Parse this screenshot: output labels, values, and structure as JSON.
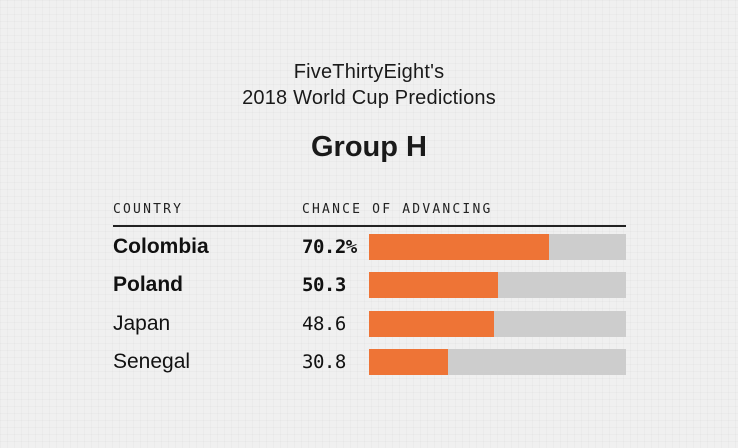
{
  "header": {
    "publisher_line": "FiveThirtyEight's",
    "title_line": "2018 World Cup Predictions",
    "group_title": "Group H"
  },
  "table": {
    "columns": {
      "country": "COUNTRY",
      "chance": "CHANCE OF ADVANCING"
    },
    "rows": [
      {
        "country": "Colombia",
        "value_label": "70.2%",
        "percent": 70.2,
        "bold": true
      },
      {
        "country": "Poland",
        "value_label": "50.3",
        "percent": 50.3,
        "bold": true
      },
      {
        "country": "Japan",
        "value_label": "48.6",
        "percent": 48.6,
        "bold": false
      },
      {
        "country": "Senegal",
        "value_label": "30.8",
        "percent": 30.8,
        "bold": false
      }
    ]
  },
  "colors": {
    "background": "#f0f0f0",
    "bar_fill": "#ee7436",
    "bar_track": "#cdcdcd",
    "rule": "#222222",
    "text": "#1a1a1a"
  },
  "chart_data": {
    "type": "bar",
    "orientation": "horizontal",
    "title": "FiveThirtyEight's 2018 World Cup Predictions — Group H",
    "categories": [
      "Colombia",
      "Poland",
      "Japan",
      "Senegal"
    ],
    "values": [
      70.2,
      50.3,
      48.6,
      30.8
    ],
    "value_labels": [
      "70.2%",
      "50.3",
      "48.6",
      "30.8"
    ],
    "xlabel": "CHANCE OF ADVANCING",
    "ylabel": "COUNTRY",
    "xlim": [
      0,
      100
    ],
    "grid": false,
    "legend": false,
    "bar_color": "#ee7436",
    "track_color": "#cdcdcd",
    "bold_rows": [
      "Colombia",
      "Poland"
    ]
  }
}
